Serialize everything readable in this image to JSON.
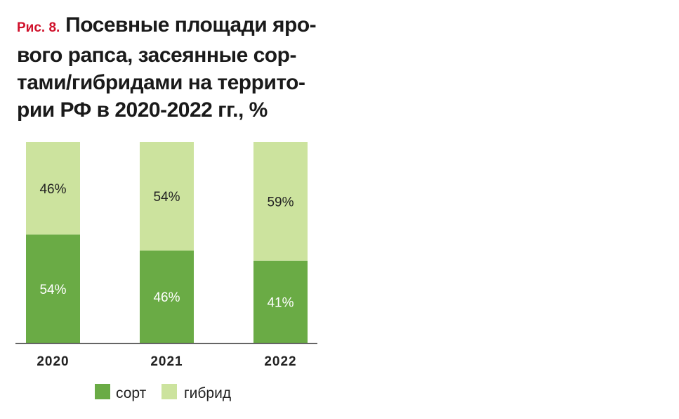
{
  "figure": {
    "label": "Рис. 8.",
    "title_lines": [
      "Посевные площади яро-",
      "вого рапса, засеянные сор-",
      "тами/гибридами на террито-",
      "рии РФ в 2020-2022 гг., %"
    ]
  },
  "colors": {
    "sort": "#6aab45",
    "hybrid": "#cce39e",
    "axis": "#555555",
    "text_dark": "#222222",
    "text_light": "#ffffff",
    "fig_label": "#d0112b"
  },
  "chart_data": {
    "type": "bar",
    "stacked": true,
    "categories": [
      "2020",
      "2021",
      "2022"
    ],
    "series": [
      {
        "name": "сорт",
        "values": [
          54,
          46,
          41
        ]
      },
      {
        "name": "гибрид",
        "values": [
          46,
          54,
          59
        ]
      }
    ],
    "data_labels": {
      "сорт": [
        "54%",
        "46%",
        "41%"
      ],
      "гибрид": [
        "46%",
        "54%",
        "59%"
      ]
    },
    "ylim": [
      0,
      100
    ],
    "grid": false,
    "legend_position": "bottom"
  }
}
